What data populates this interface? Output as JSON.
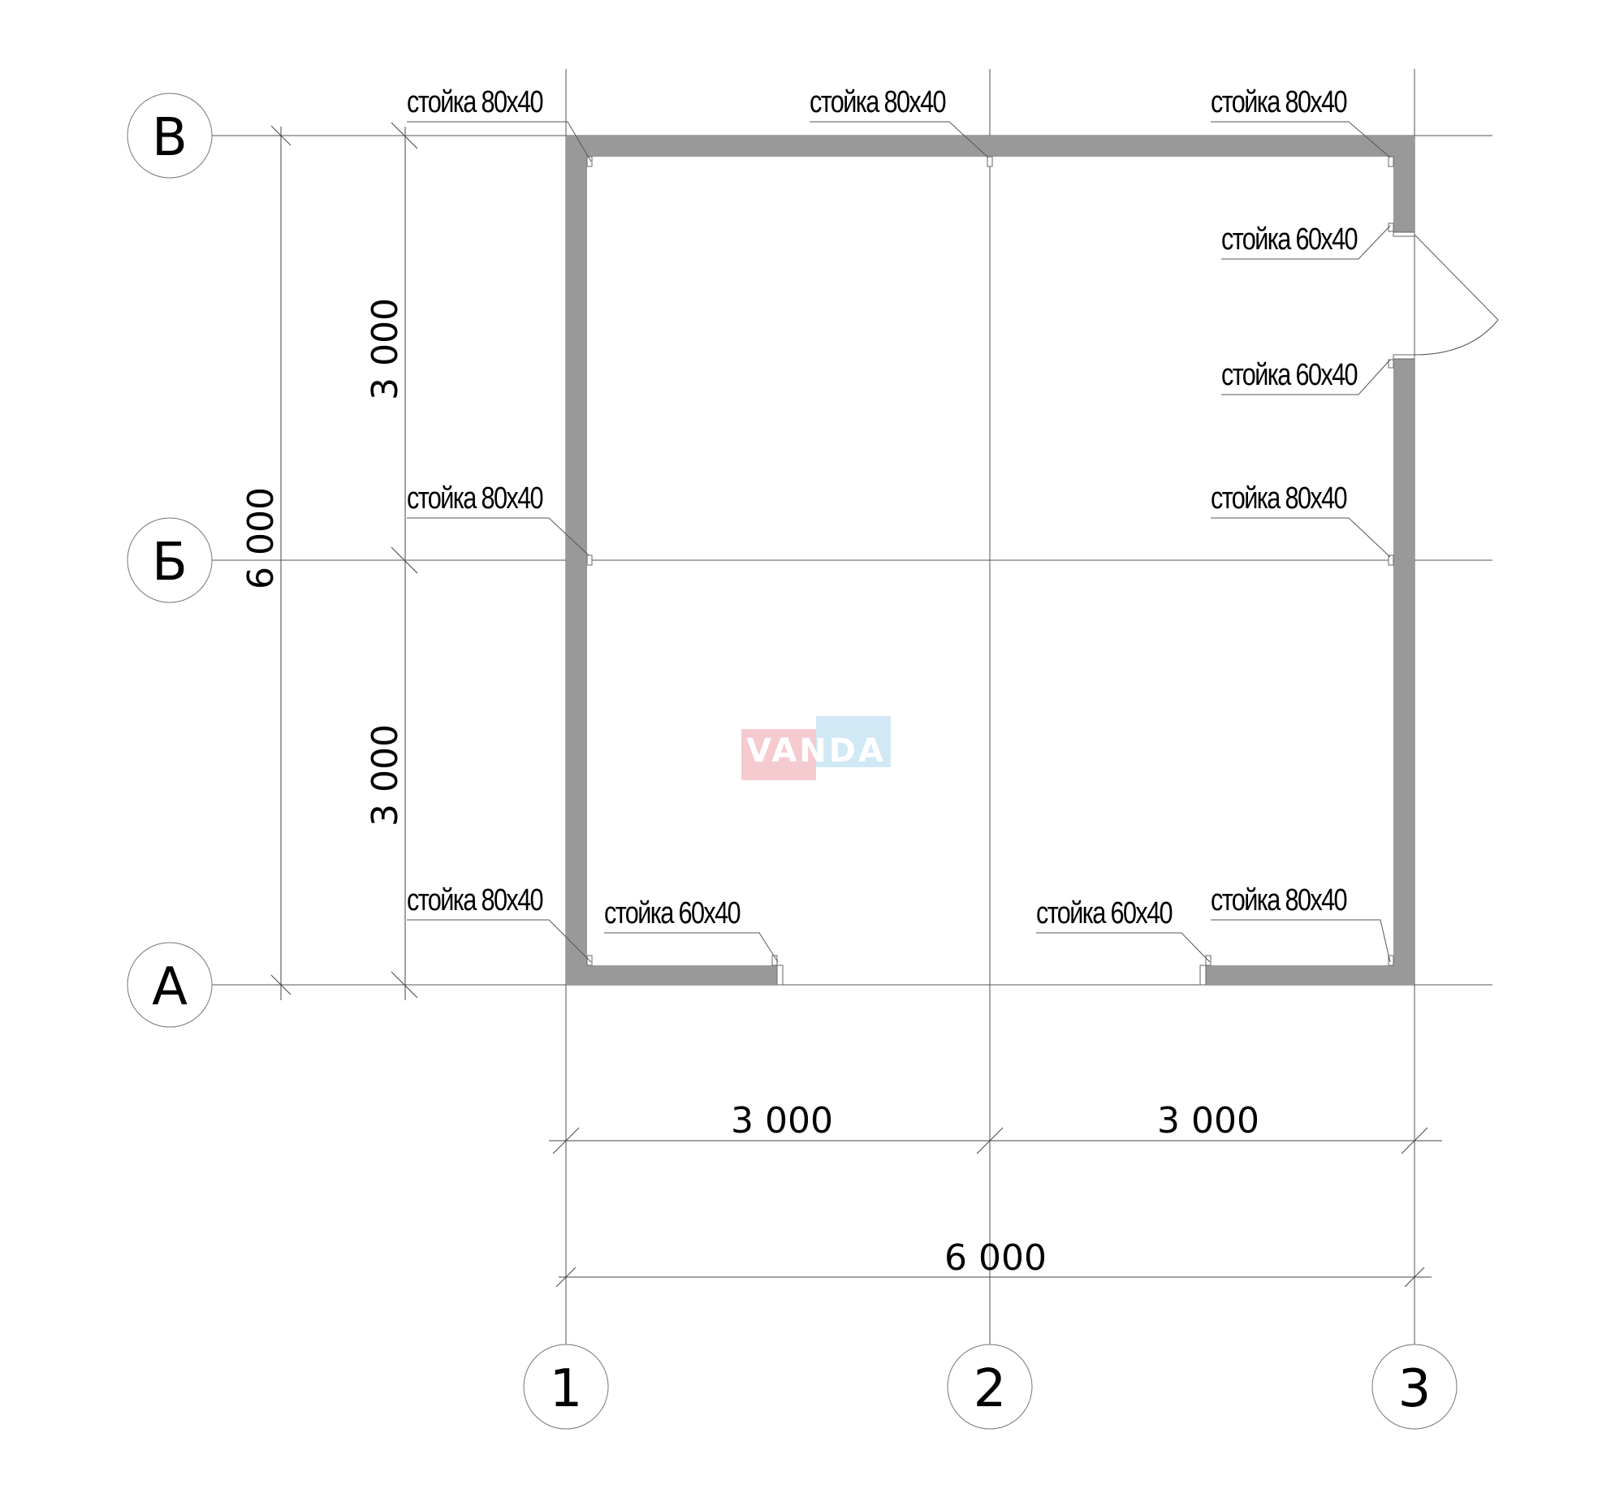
{
  "grid": {
    "rows": [
      "В",
      "Б",
      "А"
    ],
    "columns": [
      "1",
      "2",
      "3"
    ]
  },
  "dimensions": {
    "vertical_total": "6 000",
    "vertical_parts": [
      "3 000",
      "3 000"
    ],
    "horizontal_parts": [
      "3 000",
      "3 000"
    ],
    "horizontal_total": "6 000"
  },
  "post_labels": [
    "стойка 80x40",
    "стойка 80x40",
    "стойка 80x40",
    "стойка 60x40",
    "стойка 60x40",
    "стойка 80x40",
    "стойка 80x40",
    "стойка 80x40",
    "стойка 60x40",
    "стойка 60x40",
    "стойка 80x40"
  ],
  "watermark": {
    "text": "VANDA",
    "colors": [
      "#f4c6cc",
      "#cde6f5"
    ]
  },
  "colors": {
    "wall": "#999999",
    "lines": "#555555"
  }
}
